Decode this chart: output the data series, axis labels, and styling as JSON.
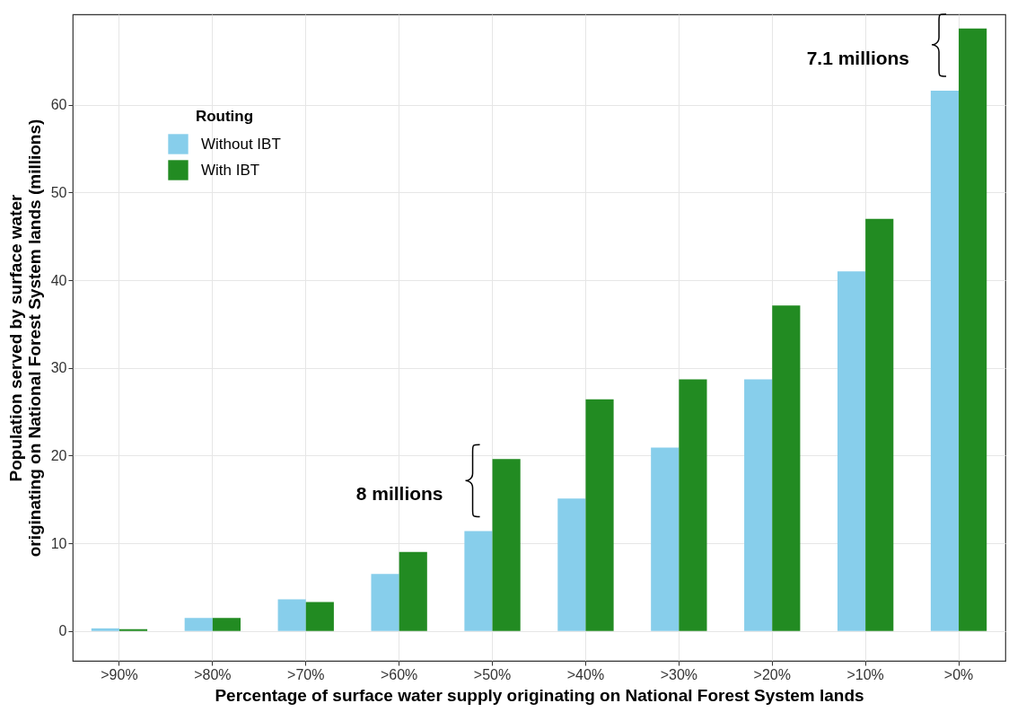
{
  "chart_data": {
    "type": "bar",
    "xlabel": "Percentage of surface water supply originating on National Forest System lands",
    "ylabel": "Population served by surface water\noriginating on National Forest System lands (millions)",
    "legend_title": "Routing",
    "categories": [
      ">90%",
      ">80%",
      ">70%",
      ">60%",
      ">50%",
      ">40%",
      ">30%",
      ">20%",
      ">10%",
      ">0%"
    ],
    "series": [
      {
        "name": "Without IBT",
        "color": "#87ceeb",
        "values": [
          0.3,
          1.5,
          3.6,
          6.5,
          11.4,
          15.1,
          20.9,
          28.7,
          41.0,
          61.6
        ]
      },
      {
        "name": "With IBT",
        "color": "#228b22",
        "values": [
          0.2,
          1.5,
          3.3,
          9.0,
          19.6,
          26.4,
          28.7,
          37.1,
          47.0,
          68.7
        ]
      }
    ],
    "ylim": [
      -3.4,
      70.3
    ],
    "yticks": [
      0,
      10,
      20,
      30,
      40,
      50,
      60
    ],
    "grid": true,
    "legend": "top left",
    "annotations": [
      {
        "text": "8 millions",
        "x": ">50%",
        "y": 15.5
      },
      {
        "text": "7.1 millions",
        "x": ">0%",
        "y": 65.2
      }
    ]
  }
}
